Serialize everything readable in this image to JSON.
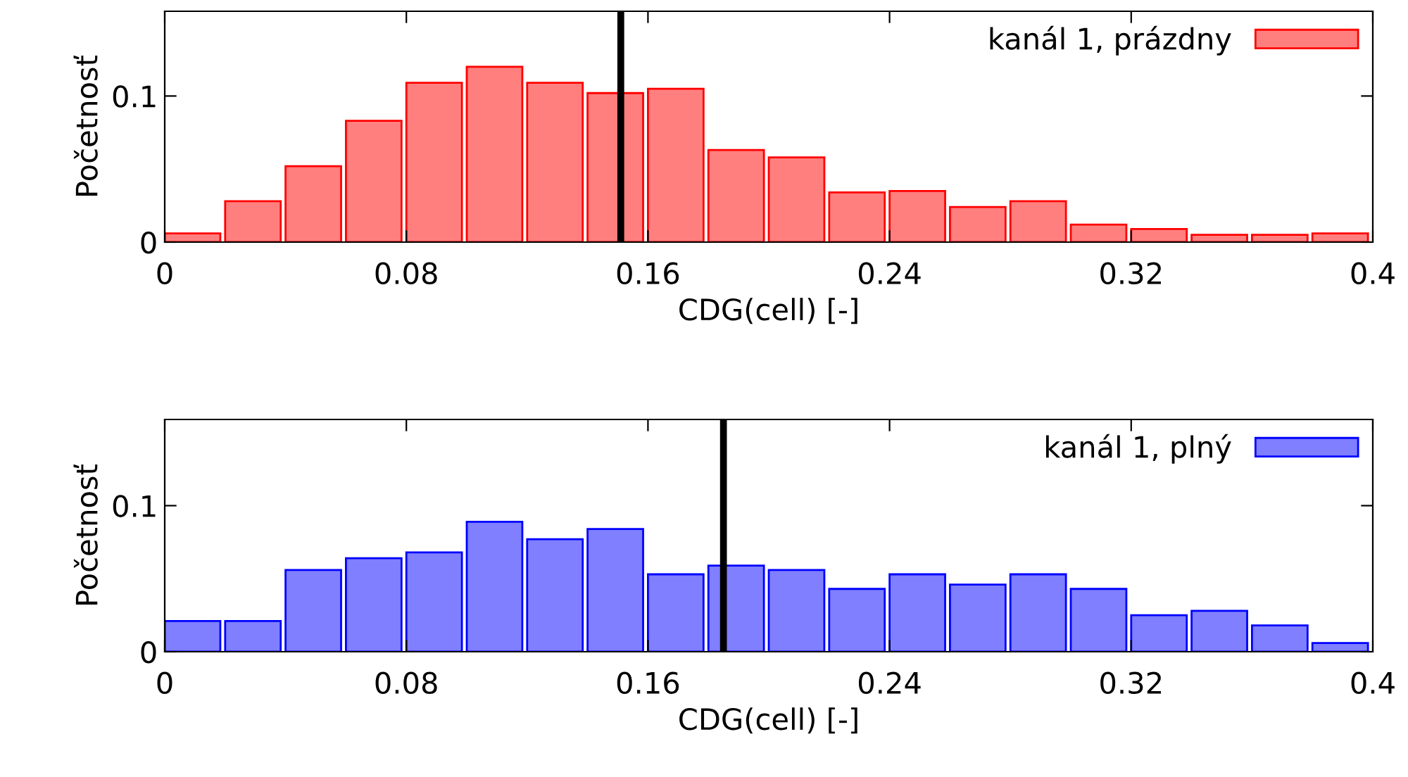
{
  "chart_data": [
    {
      "type": "histogram",
      "xlabel": "CDG(cell) [-]",
      "ylabel": "Početnosť",
      "bins": [
        0,
        0.02,
        0.04,
        0.06,
        0.08,
        0.1,
        0.12,
        0.14,
        0.16,
        0.18,
        0.2,
        0.22,
        0.24,
        0.26,
        0.28,
        0.3,
        0.32,
        0.34,
        0.36,
        0.38,
        0.4
      ],
      "series": [
        {
          "name": "kanál 1, prázdny",
          "color": "#ff7f7f",
          "values": [
            0.006,
            0.028,
            0.052,
            0.083,
            0.109,
            0.12,
            0.109,
            0.102,
            0.105,
            0.063,
            0.058,
            0.034,
            0.035,
            0.024,
            0.028,
            0.012,
            0.009,
            0.005,
            0.005,
            0.006
          ]
        }
      ],
      "xlim": [
        0,
        0.4
      ],
      "xticks": [
        0,
        0.08,
        0.16,
        0.24,
        0.32,
        0.4
      ],
      "ylim": [
        0,
        0.158
      ],
      "yticks": [
        0,
        0.1
      ],
      "ref_lines": [
        {
          "axis": "x",
          "value": 0.151,
          "color": "#000000"
        }
      ],
      "legend": "top right",
      "grid": false
    },
    {
      "type": "histogram",
      "xlabel": "CDG(cell) [-]",
      "ylabel": "Početnosť",
      "bins": [
        0,
        0.02,
        0.04,
        0.06,
        0.08,
        0.1,
        0.12,
        0.14,
        0.16,
        0.18,
        0.2,
        0.22,
        0.24,
        0.26,
        0.28,
        0.3,
        0.32,
        0.34,
        0.36,
        0.38,
        0.4
      ],
      "series": [
        {
          "name": "kanál 1, plný",
          "color": "#7f7fff",
          "values": [
            0.021,
            0.021,
            0.056,
            0.064,
            0.068,
            0.089,
            0.077,
            0.084,
            0.053,
            0.059,
            0.056,
            0.043,
            0.053,
            0.046,
            0.053,
            0.043,
            0.025,
            0.028,
            0.018,
            0.006
          ]
        }
      ],
      "xlim": [
        0,
        0.4
      ],
      "xticks": [
        0,
        0.08,
        0.16,
        0.24,
        0.32,
        0.4
      ],
      "ylim": [
        0,
        0.159
      ],
      "yticks": [
        0,
        0.1
      ],
      "ref_lines": [
        {
          "axis": "x",
          "value": 0.185,
          "color": "#000000"
        }
      ],
      "legend": "top right",
      "grid": false
    }
  ]
}
